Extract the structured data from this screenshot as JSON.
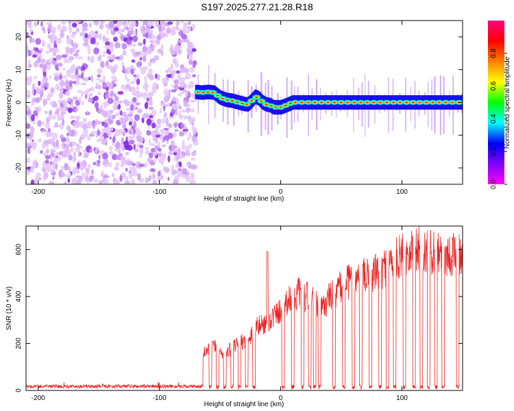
{
  "title": "S197.2025.277.21.28.R18",
  "chart_data": [
    {
      "type": "heatmap",
      "name": "spectrogram",
      "xlabel": "Height of straight line (km)",
      "ylabel": "Frequency (Hz)",
      "xlim": [
        -210,
        150
      ],
      "ylim": [
        -25,
        25
      ],
      "xticks": [
        -200,
        -100,
        0,
        100
      ],
      "yticks": [
        -20,
        -10,
        0,
        10,
        20
      ],
      "noise_region_x": [
        -210,
        -70
      ],
      "ridge": {
        "x": [
          -70,
          -65,
          -60,
          -55,
          -50,
          -45,
          -40,
          -35,
          -30,
          -27,
          -24,
          -21,
          -18,
          -15,
          -12,
          -9,
          -6,
          -3,
          0,
          5,
          10,
          20,
          30,
          40,
          60,
          80,
          100,
          120,
          150
        ],
        "freq": [
          3.2,
          3.0,
          3.2,
          3.0,
          1.5,
          0.8,
          0.5,
          0.0,
          -0.5,
          -0.6,
          0.5,
          1.8,
          1.2,
          0.0,
          -0.6,
          -0.8,
          -1.5,
          -1.5,
          -1.5,
          -0.8,
          0.0,
          0.0,
          0.0,
          0.0,
          0.0,
          0.0,
          0.0,
          0.0,
          0.0
        ]
      },
      "colorbar": {
        "label": "Normalized spectral amplitude",
        "range": [
          0,
          1
        ],
        "ticks": [
          "0.0",
          "0.2",
          "0.4",
          "0.6",
          "0.8"
        ],
        "colors": [
          "#ff00ff",
          "#7f00ff",
          "#0000ff",
          "#00ffff",
          "#00ff00",
          "#ffff00",
          "#ff7f00",
          "#ff0000",
          "#ff0080"
        ]
      }
    },
    {
      "type": "line",
      "name": "snr",
      "xlabel": "Height of straight line (km)",
      "ylabel": "SNR (10 * v/v)",
      "xlim": [
        -210,
        150
      ],
      "ylim": [
        0,
        700
      ],
      "xticks": [
        -200,
        -100,
        0,
        100
      ],
      "yticks": [
        0,
        200,
        400,
        600
      ],
      "color": "#ee2222",
      "noise_level": [
        10,
        25
      ],
      "envelope": {
        "x": [
          -62,
          -55,
          -48,
          -40,
          -32,
          -25,
          -20,
          -12,
          -6,
          0,
          5,
          10,
          15,
          20,
          25,
          30,
          35,
          40,
          48,
          55,
          62,
          70,
          80,
          90,
          100,
          110,
          120,
          130,
          140,
          150
        ],
        "y": [
          180,
          210,
          170,
          200,
          230,
          260,
          300,
          320,
          350,
          380,
          420,
          440,
          460,
          430,
          460,
          400,
          390,
          440,
          480,
          510,
          520,
          540,
          560,
          600,
          640,
          680,
          650,
          660,
          640,
          650
        ]
      },
      "spike": {
        "x": -11,
        "y": 590
      },
      "dropouts_x": [
        -58,
        -52,
        -46,
        -40,
        -34,
        -28,
        -22,
        2,
        10,
        18,
        24,
        28,
        32,
        44,
        52,
        60,
        66,
        74,
        82,
        88,
        94,
        102,
        110,
        116,
        122,
        128,
        134,
        146
      ]
    }
  ]
}
